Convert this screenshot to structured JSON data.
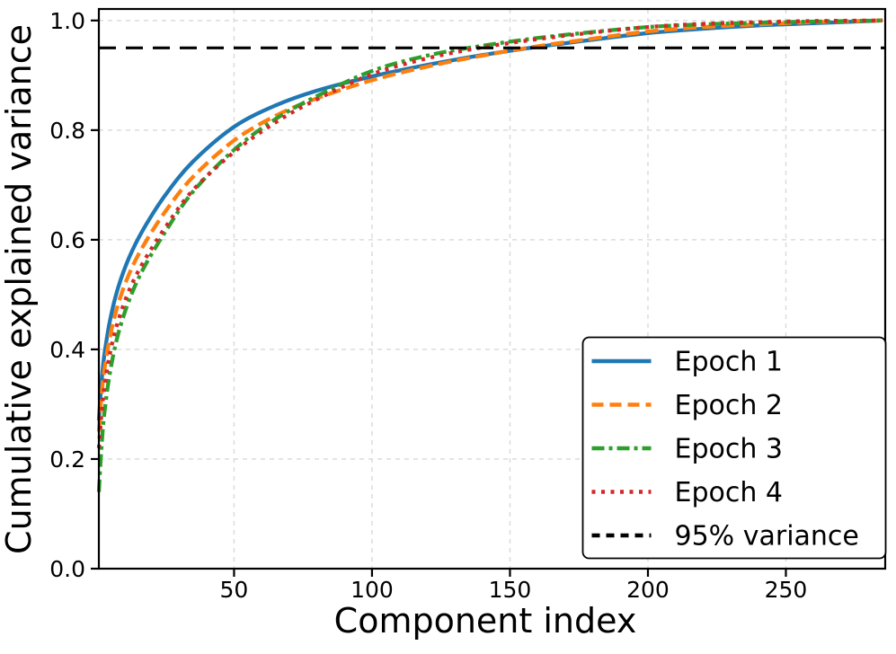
{
  "figure": {
    "background": "#ffffff",
    "text_color": "#000000"
  },
  "chart_data": {
    "type": "line",
    "title": "",
    "xlabel": "Component index",
    "ylabel": "Cumulative explained variance",
    "xlim": [
      1,
      286
    ],
    "ylim": [
      0,
      1.021
    ],
    "grid": true,
    "grid_color": "#dcdcdc",
    "legend_position": "lower right",
    "x_ticks": {
      "values": [
        50,
        100,
        150,
        200,
        250
      ],
      "labels": [
        "50",
        "100",
        "150",
        "200",
        "250"
      ]
    },
    "y_ticks": {
      "values": [
        0,
        0.2,
        0.4,
        0.6,
        0.8,
        1.0
      ],
      "labels": [
        "0.0",
        "0.2",
        "0.4",
        "0.6",
        "0.8",
        "1.0"
      ]
    },
    "x": [
      1,
      2,
      3,
      5,
      8,
      12,
      17,
      25,
      35,
      50,
      65,
      80,
      100,
      120,
      140,
      160,
      180,
      200,
      220,
      240,
      260,
      285
    ],
    "series": [
      {
        "name": "Epoch 1",
        "color": "#1f77b4",
        "style": "solid",
        "values": [
          0.27,
          0.343,
          0.39,
          0.452,
          0.513,
          0.568,
          0.618,
          0.681,
          0.742,
          0.806,
          0.845,
          0.872,
          0.898,
          0.919,
          0.937,
          0.952,
          0.965,
          0.977,
          0.985,
          0.991,
          0.995,
          1.0
        ]
      },
      {
        "name": "Epoch 2",
        "color": "#ff7f0e",
        "style": "dashed",
        "values": [
          0.25,
          0.318,
          0.362,
          0.422,
          0.483,
          0.538,
          0.588,
          0.651,
          0.714,
          0.781,
          0.826,
          0.858,
          0.891,
          0.916,
          0.936,
          0.953,
          0.967,
          0.98,
          0.988,
          0.993,
          0.997,
          1.0
        ]
      },
      {
        "name": "Epoch 3",
        "color": "#2ca02c",
        "style": "dashdot",
        "values": [
          0.14,
          0.225,
          0.283,
          0.357,
          0.428,
          0.49,
          0.546,
          0.614,
          0.687,
          0.764,
          0.82,
          0.862,
          0.908,
          0.936,
          0.954,
          0.968,
          0.979,
          0.988,
          0.993,
          0.996,
          0.998,
          1.0
        ]
      },
      {
        "name": "Epoch 4",
        "color": "#d62728",
        "style": "dotted",
        "values": [
          0.22,
          0.285,
          0.33,
          0.392,
          0.452,
          0.508,
          0.558,
          0.622,
          0.69,
          0.76,
          0.814,
          0.856,
          0.902,
          0.931,
          0.951,
          0.966,
          0.978,
          0.988,
          0.994,
          0.997,
          0.999,
          1.0
        ]
      }
    ],
    "threshold": {
      "name": "95% variance",
      "value": 0.95,
      "color": "#000000",
      "style": "threshold-dash"
    }
  }
}
